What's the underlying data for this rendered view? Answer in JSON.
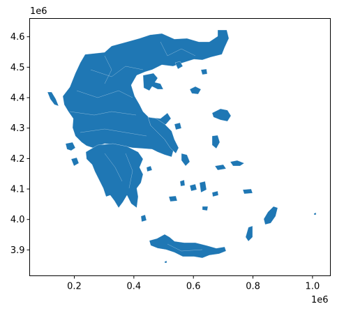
{
  "chart_data": {
    "type": "map",
    "title": "",
    "xlabel": "",
    "ylabel": "",
    "x_offset_label": "1e6",
    "y_offset_label": "1e6",
    "xlim": [
      0.05,
      1.06
    ],
    "ylim": [
      3.815,
      4.66
    ],
    "xticks": [
      0.2,
      0.4,
      0.6,
      0.8,
      1.0
    ],
    "xtick_labels": [
      "0.2",
      "0.4",
      "0.6",
      "0.8",
      "1.0"
    ],
    "yticks": [
      3.9,
      4.0,
      4.1,
      4.2,
      4.3,
      4.4,
      4.5,
      4.6
    ],
    "ytick_labels": [
      "3.9",
      "4.0",
      "4.1",
      "4.2",
      "4.3",
      "4.4",
      "4.5",
      "4.6"
    ],
    "fill_color": "#1f77b4",
    "edge_color": "#ffffff",
    "grid": false,
    "legend": "none"
  }
}
